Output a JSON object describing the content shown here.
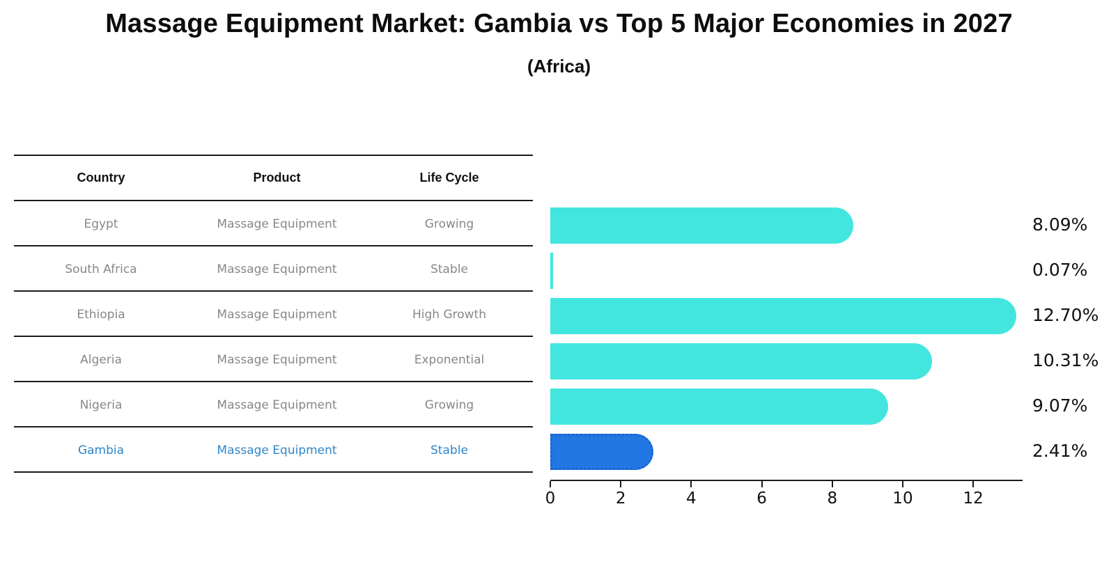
{
  "title": "Massage Equipment Market: Gambia vs Top 5 Major Economies in 2027",
  "subtitle": "(Africa)",
  "table": {
    "headers": [
      "Country",
      "Product",
      "Life Cycle"
    ],
    "rows": [
      {
        "country": "Egypt",
        "product": "Massage Equipment",
        "life_cycle": "Growing",
        "highlight": false
      },
      {
        "country": "South Africa",
        "product": "Massage Equipment",
        "life_cycle": "Stable",
        "highlight": false
      },
      {
        "country": "Ethiopia",
        "product": "Massage Equipment",
        "life_cycle": "High Growth",
        "highlight": false
      },
      {
        "country": "Algeria",
        "product": "Massage Equipment",
        "life_cycle": "Exponential",
        "highlight": false
      },
      {
        "country": "Nigeria",
        "product": "Massage Equipment",
        "life_cycle": "Growing",
        "highlight": true
      },
      {
        "country": "Gambia",
        "product": "Massage Equipment",
        "life_cycle": "Stable",
        "highlight": true
      }
    ]
  },
  "chart_data": {
    "type": "bar",
    "orientation": "horizontal",
    "title": "Massage Equipment Market: Gambia vs Top 5 Major Economies in 2027 (Africa)",
    "categories": [
      "Egypt",
      "South Africa",
      "Ethiopia",
      "Algeria",
      "Nigeria",
      "Gambia"
    ],
    "values": [
      8.09,
      0.07,
      12.7,
      10.31,
      9.07,
      2.41
    ],
    "value_labels": [
      "8.09%",
      "0.07%",
      "12.70%",
      "10.31%",
      "9.07%",
      "2.41%"
    ],
    "highlight_category": "Gambia",
    "xlabel": "",
    "ylabel": "",
    "xlim": [
      0,
      13.4
    ],
    "xticks": [
      0,
      2,
      4,
      6,
      8,
      10,
      12
    ],
    "grid": false,
    "legend": false,
    "colors": {
      "bar": "#42E6DE",
      "highlight_bar": "#2277E2",
      "highlight_border": "#1b63cf",
      "value_label": "#111111",
      "cell_text": "#878787",
      "highlight_text": "#2e86c9",
      "axis": "#1a1a1a"
    }
  }
}
